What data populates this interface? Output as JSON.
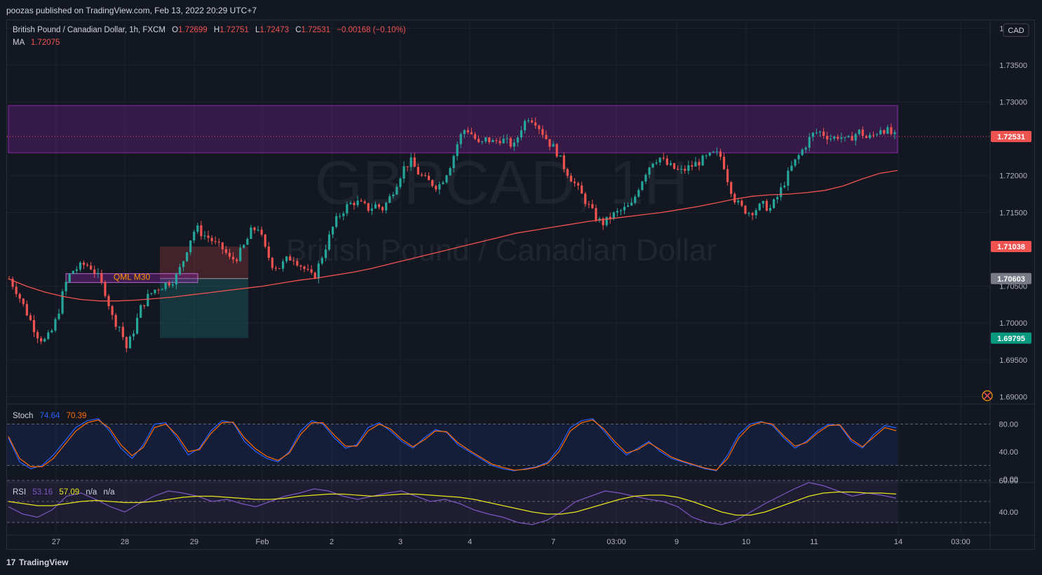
{
  "header": {
    "published_by": "poozas published on TradingView.com, Feb 13, 2022 20:29 UTC+7"
  },
  "legend": {
    "symbol": "British Pound / Canadian Dollar, 1h, FXCM",
    "o_label": "O",
    "o_value": "1.72699",
    "h_label": "H",
    "h_value": "1.72751",
    "l_label": "L",
    "l_value": "1.72473",
    "c_label": "C",
    "c_value": "1.72531",
    "change": "−0.00168 (−0.10%)",
    "ma_label": "MA",
    "ma_value": "1.72075"
  },
  "watermark": {
    "ticker": "GBPCAD, 1H",
    "name": "British Pound / Canadian Dollar"
  },
  "currency_badge": "CAD",
  "annotation": "QML M30",
  "price_labels": {
    "current": "1.72531",
    "stop": "1.71038",
    "entry": "1.70603",
    "target": "1.69795"
  },
  "stoch_legend": {
    "label": "Stoch",
    "k": "74.64",
    "d": "70.39"
  },
  "rsi_legend": {
    "label": "RSI",
    "rsi": "53.16",
    "ma": "57.09",
    "na1": "n/a",
    "na2": "n/a"
  },
  "footer": {
    "brand": "TradingView"
  },
  "colors": {
    "background": "#131722",
    "up": "#26a69a",
    "down": "#ef5350",
    "ma": "#ef5350",
    "zone": "#8e24aa",
    "stoch_k": "#2962ff",
    "stoch_d": "#ff6d00",
    "rsi": "#7e57c2",
    "rsi_ma": "#e6e61a"
  },
  "chart_data": {
    "type": "candlestick",
    "y_ticks": [
      "1.74000",
      "1.73500",
      "1.73000",
      "1.72000",
      "1.71500",
      "1.70500",
      "1.70000",
      "1.69500",
      "1.69000"
    ],
    "ylim": [
      1.689,
      1.7405
    ],
    "x_ticks": [
      "27",
      "28",
      "29",
      "Feb",
      "2",
      "3",
      "4",
      "7",
      "03:00",
      "9",
      "10",
      "11",
      "14",
      "03:00"
    ],
    "price_path": [
      1.706,
      1.7045,
      1.7025,
      1.7005,
      1.6985,
      1.6975,
      1.6985,
      1.701,
      1.705,
      1.707,
      1.7075,
      1.708,
      1.7075,
      1.706,
      1.704,
      1.7005,
      1.6995,
      1.6965,
      1.699,
      1.702,
      1.7035,
      1.7045,
      1.705,
      1.7055,
      1.706,
      1.708,
      1.711,
      1.713,
      1.712,
      1.7115,
      1.7105,
      1.71,
      1.7085,
      1.709,
      1.7105,
      1.7125,
      1.713,
      1.71,
      1.708,
      1.7075,
      1.7085,
      1.709,
      1.708,
      1.707,
      1.706,
      1.7085,
      1.711,
      1.7135,
      1.715,
      1.716,
      1.7165,
      1.716,
      1.7155,
      1.716,
      1.7155,
      1.717,
      1.719,
      1.721,
      1.722,
      1.7205,
      1.7195,
      1.719,
      1.7185,
      1.72,
      1.722,
      1.725,
      1.7265,
      1.7255,
      1.724,
      1.725,
      1.7245,
      1.725,
      1.7245,
      1.724,
      1.7265,
      1.728,
      1.7275,
      1.726,
      1.7245,
      1.7235,
      1.7215,
      1.72,
      1.7185,
      1.717,
      1.7155,
      1.714,
      1.7135,
      1.7145,
      1.715,
      1.7155,
      1.716,
      1.7185,
      1.7205,
      1.722,
      1.7225,
      1.7215,
      1.721,
      1.7205,
      1.721,
      1.7215,
      1.722,
      1.7225,
      1.723,
      1.7225,
      1.719,
      1.7165,
      1.7155,
      1.715,
      1.7155,
      1.716,
      1.7155,
      1.717,
      1.719,
      1.721,
      1.7225,
      1.724,
      1.7255,
      1.726,
      1.7255,
      1.725,
      1.7255,
      1.7245,
      1.7255,
      1.726,
      1.725,
      1.7255,
      1.7265,
      1.726,
      1.7253
    ],
    "ma_path": [
      1.706,
      1.705,
      1.7042,
      1.7036,
      1.7032,
      1.703,
      1.703,
      1.7031,
      1.7033,
      1.7035,
      1.7038,
      1.7041,
      1.7044,
      1.7047,
      1.705,
      1.7054,
      1.7058,
      1.7061,
      1.7065,
      1.7069,
      1.7074,
      1.708,
      1.7086,
      1.7092,
      1.7098,
      1.7104,
      1.711,
      1.7116,
      1.7122,
      1.7126,
      1.713,
      1.7134,
      1.7138,
      1.7141,
      1.7144,
      1.7147,
      1.715,
      1.7154,
      1.7158,
      1.7163,
      1.7168,
      1.7172,
      1.7174,
      1.7175,
      1.7177,
      1.718,
      1.7186,
      1.7195,
      1.7203,
      1.7207
    ],
    "zones": {
      "resistance_top": 1.7295,
      "resistance_bottom": 1.7231,
      "qml_top": 1.7067,
      "qml_bottom": 1.7055,
      "stop": 1.71038,
      "entry": 1.70603,
      "target": 1.69795
    },
    "stoch_ticks": [
      "80.00",
      "40.00",
      "0.00"
    ],
    "stoch_k": [
      60,
      25,
      15,
      20,
      35,
      55,
      75,
      85,
      88,
      70,
      45,
      30,
      50,
      80,
      82,
      60,
      35,
      45,
      70,
      85,
      82,
      55,
      40,
      30,
      25,
      40,
      70,
      85,
      80,
      60,
      45,
      50,
      75,
      82,
      70,
      55,
      45,
      60,
      72,
      68,
      50,
      40,
      30,
      20,
      15,
      12,
      15,
      18,
      25,
      45,
      75,
      85,
      88,
      70,
      50,
      35,
      45,
      55,
      40,
      30,
      25,
      20,
      15,
      12,
      35,
      65,
      80,
      84,
      78,
      60,
      45,
      55,
      70,
      80,
      78,
      55,
      45,
      65,
      78,
      74.64
    ],
    "stoch_d": [
      62,
      30,
      18,
      18,
      30,
      50,
      70,
      82,
      86,
      74,
      50,
      34,
      46,
      75,
      80,
      64,
      40,
      43,
      66,
      82,
      83,
      60,
      44,
      33,
      27,
      38,
      65,
      82,
      82,
      64,
      48,
      48,
      70,
      80,
      73,
      58,
      47,
      57,
      70,
      69,
      53,
      42,
      32,
      22,
      17,
      13,
      14,
      17,
      23,
      40,
      70,
      82,
      86,
      73,
      54,
      38,
      43,
      53,
      43,
      32,
      26,
      21,
      16,
      13,
      30,
      60,
      77,
      83,
      80,
      63,
      48,
      53,
      67,
      78,
      79,
      58,
      47,
      61,
      75,
      70.39
    ],
    "rsi_ticks": [
      "60.00",
      "40.00"
    ],
    "rsi": [
      45,
      38,
      35,
      42,
      55,
      58,
      52,
      45,
      40,
      48,
      55,
      60,
      58,
      55,
      50,
      52,
      48,
      45,
      50,
      55,
      58,
      62,
      60,
      55,
      52,
      55,
      58,
      60,
      55,
      50,
      52,
      48,
      42,
      38,
      35,
      30,
      28,
      32,
      40,
      50,
      55,
      60,
      58,
      55,
      52,
      50,
      45,
      35,
      30,
      28,
      32,
      40,
      48,
      55,
      62,
      68,
      65,
      60,
      55,
      58,
      56,
      53.16
    ],
    "rsi_ma": [
      50,
      48,
      46,
      46,
      48,
      50,
      51,
      50,
      49,
      49,
      50,
      52,
      54,
      55,
      55,
      54,
      53,
      52,
      52,
      53,
      55,
      56,
      57,
      57,
      56,
      55,
      56,
      57,
      57,
      56,
      55,
      54,
      52,
      49,
      46,
      43,
      40,
      38,
      38,
      40,
      44,
      48,
      52,
      55,
      56,
      56,
      54,
      50,
      45,
      40,
      37,
      37,
      40,
      45,
      50,
      55,
      58,
      59,
      59,
      58,
      58,
      57.09
    ]
  }
}
